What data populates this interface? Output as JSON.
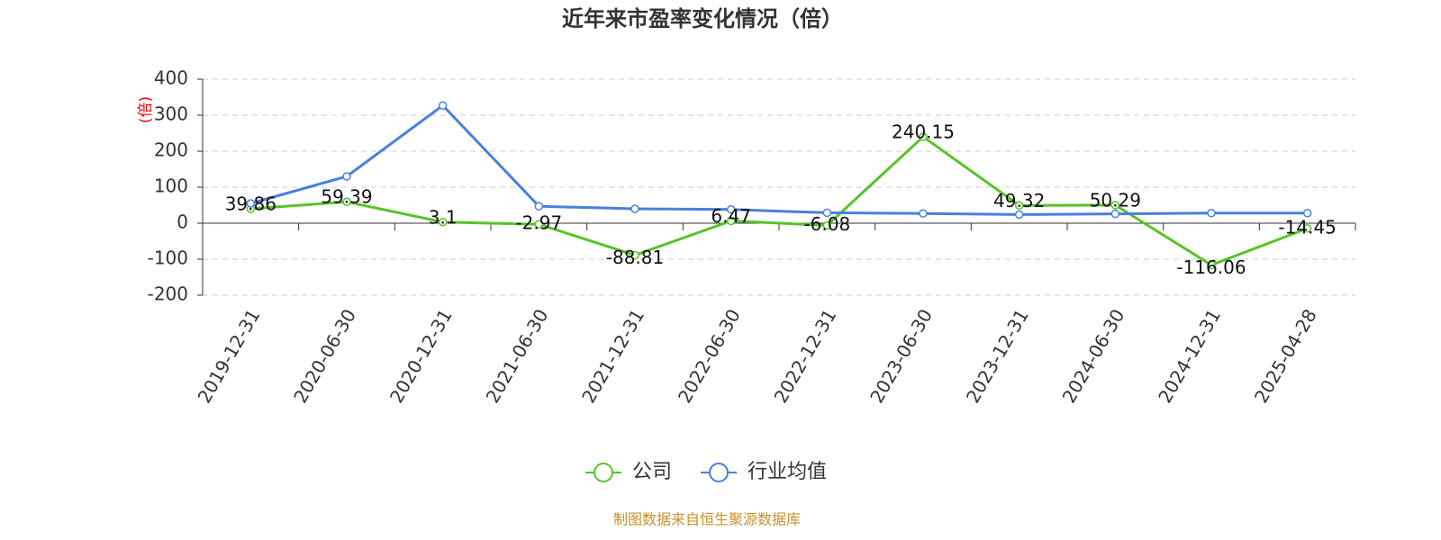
{
  "chart_data": {
    "type": "line",
    "title": "近年来市盈率变化情况（倍）",
    "y_label": "(倍)",
    "categories": [
      "2019-12-31",
      "2020-06-30",
      "2020-12-31",
      "2021-06-30",
      "2021-12-31",
      "2022-06-30",
      "2022-12-31",
      "2023-06-30",
      "2023-12-31",
      "2024-06-30",
      "2024-12-31",
      "2025-04-28"
    ],
    "series": [
      {
        "name": "公司",
        "color": "#58c22a",
        "values": [
          39.86,
          59.39,
          3.1,
          -2.97,
          -88.81,
          6.47,
          -6.08,
          240.15,
          49.32,
          50.29,
          -116.06,
          -14.45
        ]
      },
      {
        "name": "行业均值",
        "color": "#4a7fdc",
        "values": [
          55,
          130,
          327,
          47,
          40,
          38,
          29,
          27,
          24,
          26,
          28,
          28
        ]
      }
    ],
    "ylim": [
      -200,
      400
    ],
    "yticks": [
      -200,
      -100,
      0,
      100,
      200,
      300,
      400
    ],
    "grid": true,
    "source": "制图数据来自恒生聚源数据库"
  }
}
